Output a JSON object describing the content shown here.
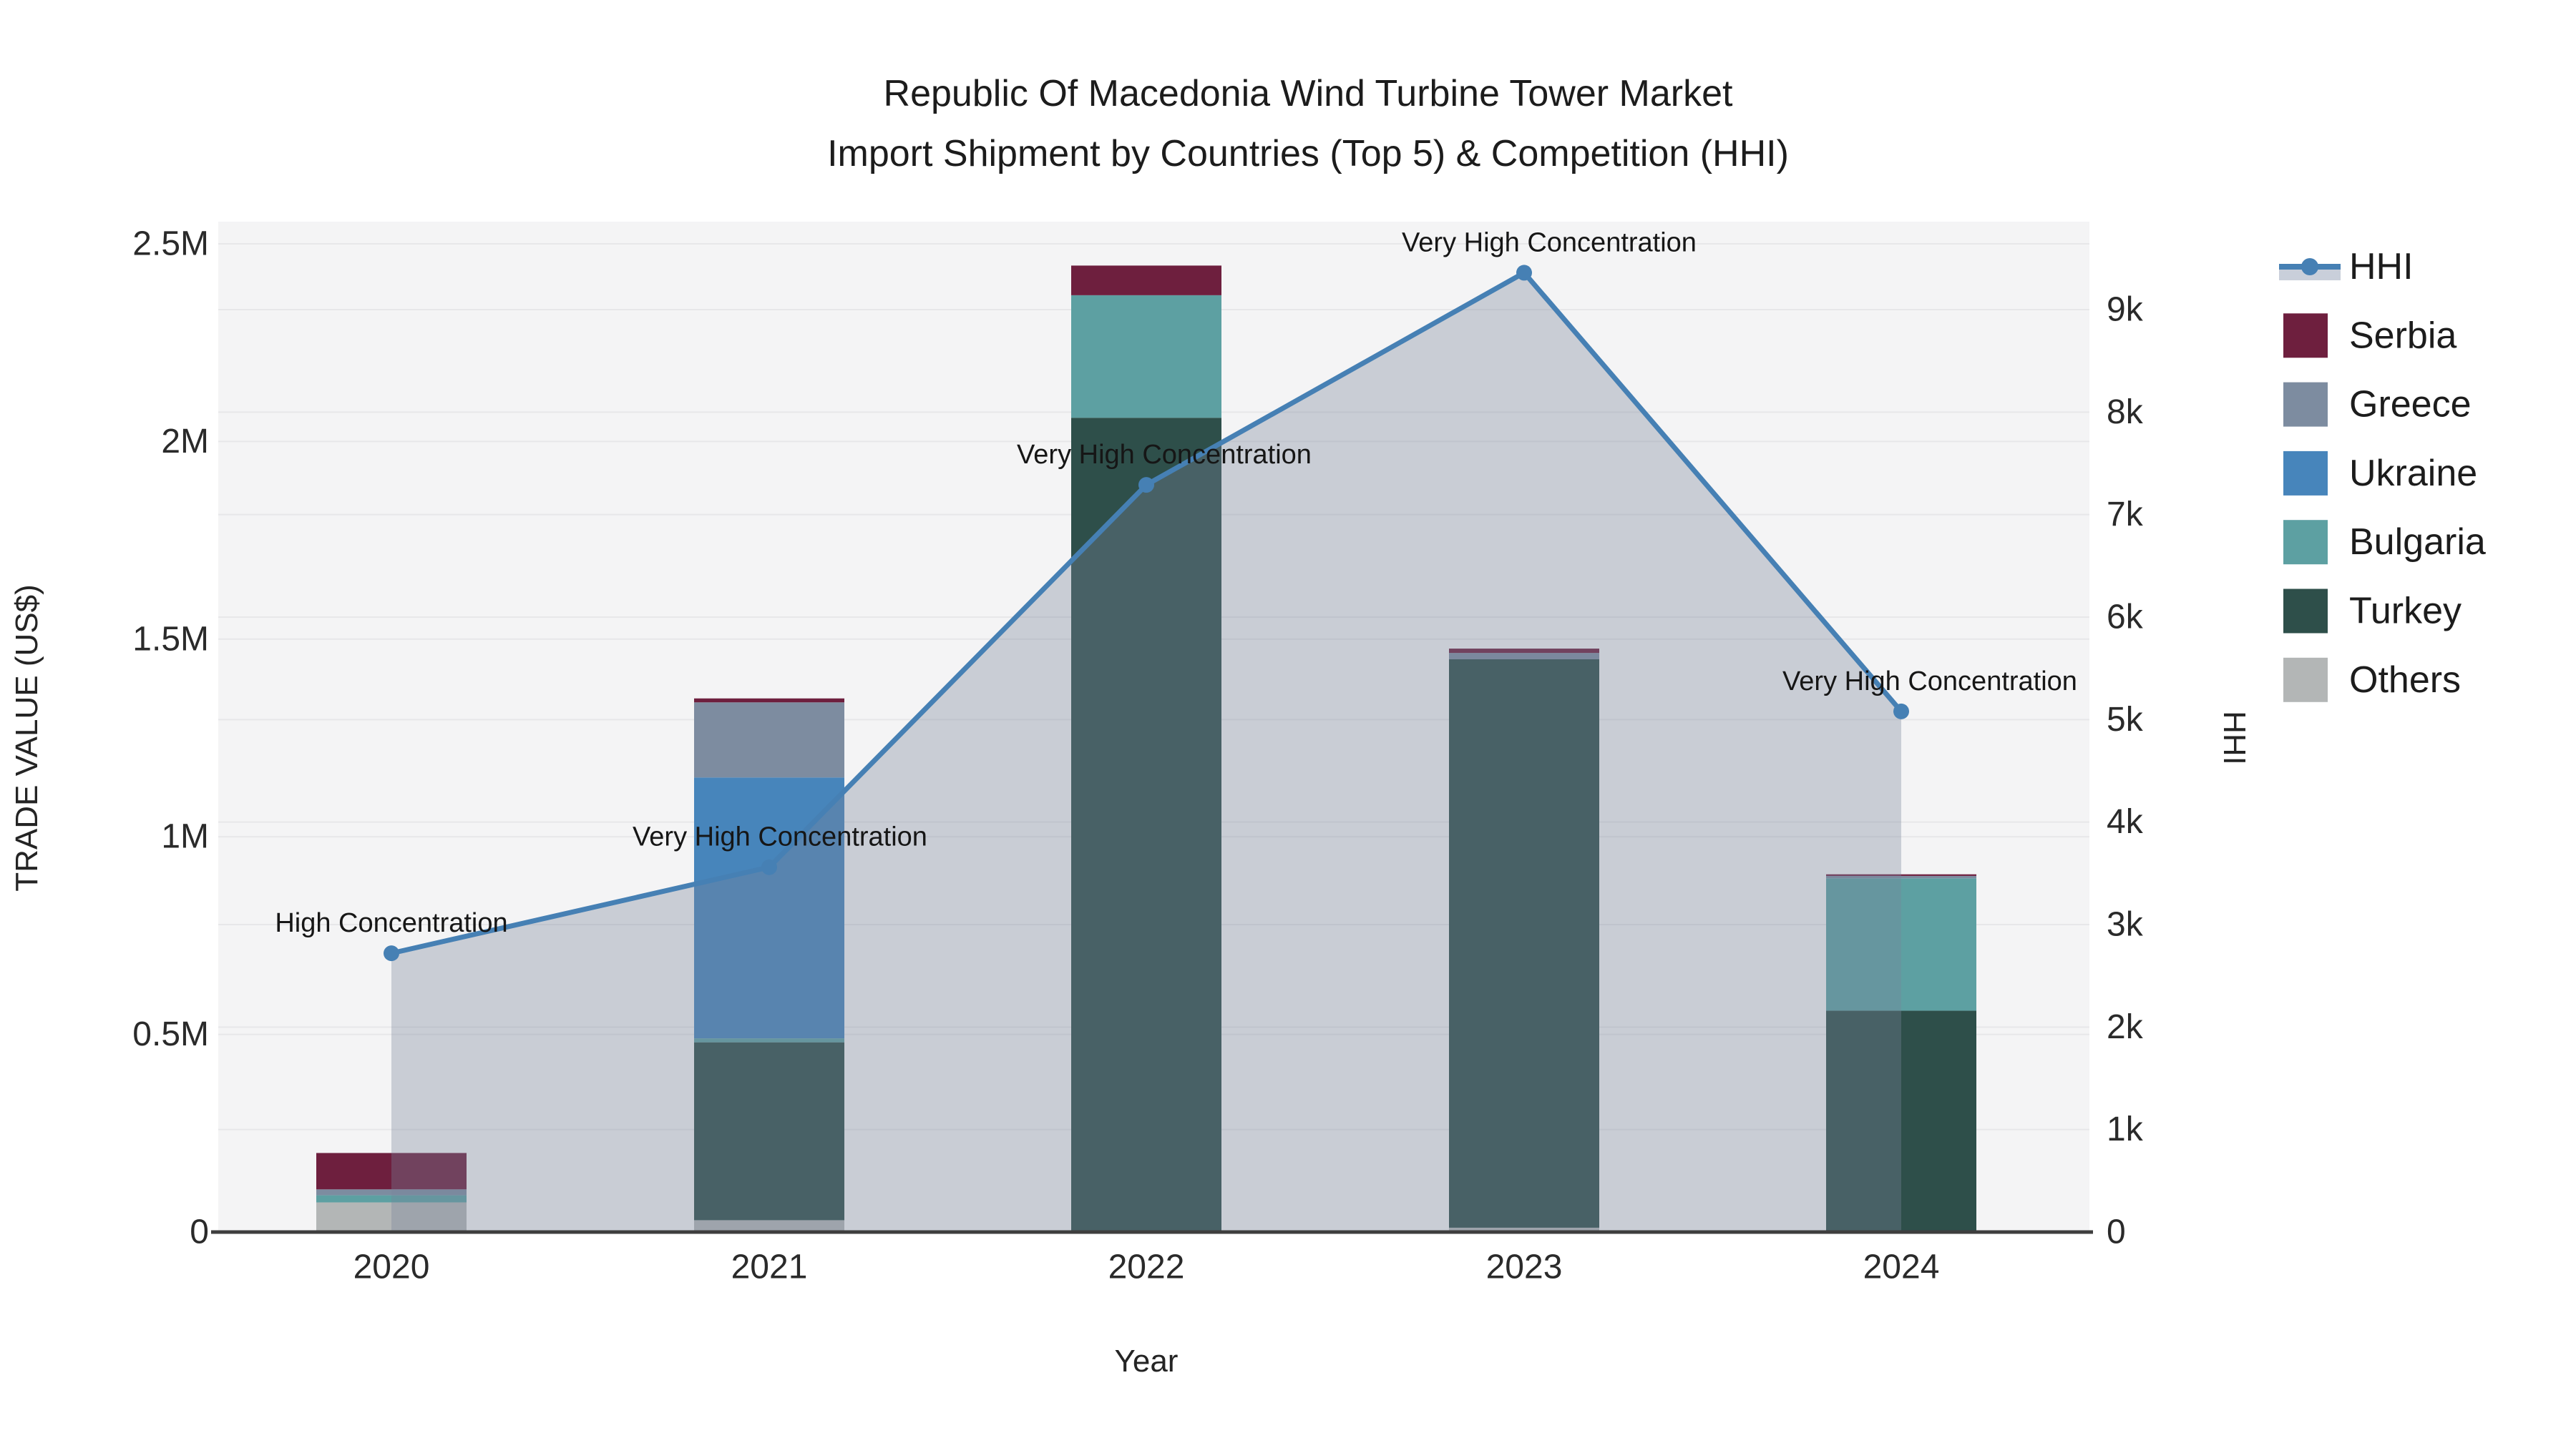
{
  "title": {
    "line1": "Republic Of Macedonia Wind Turbine Tower Market",
    "line2": "Import Shipment by Countries (Top 5) & Competition (HHI)"
  },
  "axes": {
    "x_label": "Year",
    "y_left_label": "TRADE VALUE (US$)",
    "y_right_label": "HHI",
    "y_left_ticks": [
      "0",
      "0.5M",
      "1M",
      "1.5M",
      "2M",
      "2.5M"
    ],
    "y_left_tick_values_musd": [
      0,
      0.5,
      1,
      1.5,
      2,
      2.5
    ],
    "y_right_ticks": [
      "0",
      "1k",
      "2k",
      "3k",
      "4k",
      "5k",
      "6k",
      "7k",
      "8k",
      "9k"
    ],
    "y_right_tick_values": [
      0,
      1000,
      2000,
      3000,
      4000,
      5000,
      6000,
      7000,
      8000,
      9000
    ]
  },
  "chart_data": {
    "type": "bar+line",
    "categories": [
      "2020",
      "2021",
      "2022",
      "2023",
      "2024"
    ],
    "bar_value_unit": "US$ millions",
    "stack_order_note": "bottom to top",
    "series": [
      {
        "name": "Others",
        "color": "#b3b6b6",
        "values": [
          0.075,
          0.03,
          0.0,
          0.011,
          0.0
        ]
      },
      {
        "name": "Turkey",
        "color": "#2e4f4a",
        "values": [
          0.0,
          0.45,
          2.06,
          1.438,
          0.56
        ]
      },
      {
        "name": "Bulgaria",
        "color": "#5da0a2",
        "values": [
          0.018,
          0.01,
          0.31,
          0.0,
          0.335
        ]
      },
      {
        "name": "Ukraine",
        "color": "#4785bb",
        "values": [
          0.0,
          0.66,
          0.0,
          0.0,
          0.0
        ]
      },
      {
        "name": "Greece",
        "color": "#7d8ca0",
        "values": [
          0.015,
          0.19,
          0.0,
          0.016,
          0.006
        ]
      },
      {
        "name": "Serbia",
        "color": "#6e1f3e",
        "values": [
          0.092,
          0.01,
          0.075,
          0.011,
          0.004
        ]
      }
    ],
    "bar_totals_musd": [
      0.2,
      1.35,
      2.445,
      1.476,
      0.905
    ],
    "line": {
      "name": "HHI",
      "color": "#4680b4",
      "area_fill": "rgba(121,132,155,0.35)",
      "values": [
        2720,
        3560,
        7290,
        9360,
        5080
      ]
    },
    "annotations": [
      "High Concentration",
      "Very High Concentration",
      "Very High Concentration",
      "Very High Concentration",
      "Very High Concentration"
    ],
    "ylim_left_musd": [
      0,
      2.55
    ],
    "ylim_right": [
      0,
      9850
    ],
    "grid": "on",
    "legend_position": "right",
    "legend_order": [
      "HHI",
      "Serbia",
      "Greece",
      "Ukraine",
      "Bulgaria",
      "Turkey",
      "Others"
    ]
  }
}
